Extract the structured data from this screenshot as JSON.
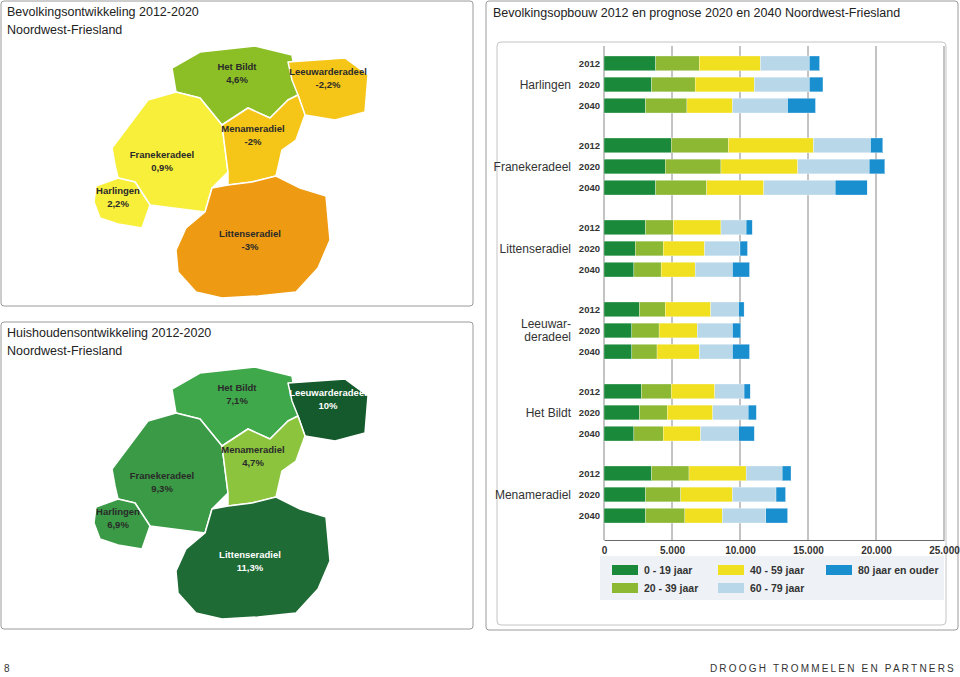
{
  "chart_data": [
    {
      "type": "map",
      "title": "Bevolkingsontwikkeling 2012-2020",
      "subtitle": "Noordwest-Friesland",
      "categories": [
        "Het Bildt",
        "Leeuwarderadeel",
        "Franekeradeel",
        "Menameradiel",
        "Harlingen",
        "Littenseradiel"
      ],
      "values": [
        4.6,
        -2.2,
        0.9,
        -2,
        2.2,
        -3
      ],
      "value_labels": [
        "4,6%",
        "-2,2%",
        "0,9%",
        "-2%",
        "2,2%",
        "-3%"
      ],
      "colors": [
        "#8cbf26",
        "#f5c518",
        "#f8ef3a",
        "#f5c518",
        "#f8ef3a",
        "#ee9a12"
      ],
      "data_labels": true
    },
    {
      "type": "map",
      "title": "Huishoudensontwikkeling 2012-2020",
      "subtitle": "Noordwest-Friesland",
      "categories": [
        "Het Bildt",
        "Leeuwarderadeel",
        "Franekeradeel",
        "Menameradiel",
        "Harlingen",
        "Littenseradiel"
      ],
      "values": [
        7.1,
        10,
        9.3,
        4.7,
        6.9,
        11.3
      ],
      "value_labels": [
        "7,1%",
        "10%",
        "9,3%",
        "4,7%",
        "6,9%",
        "11,3%"
      ],
      "colors": [
        "#3fa84a",
        "#155a2c",
        "#3a9a45",
        "#8cc43e",
        "#3a9a45",
        "#1f6b35"
      ],
      "data_labels": true
    },
    {
      "type": "bar",
      "orientation": "horizontal",
      "stacked": true,
      "grid": true,
      "legend": "bottom",
      "title": "Bevolkingsopbouw 2012 en prognose 2020 en 2040 Noordwest-Friesland",
      "groups": [
        "Harlingen",
        "Franekeradeel",
        "Littenseradiel",
        "Leeuwar-\nderadeel",
        "Het Bildt",
        "Menameradiel"
      ],
      "categories": [
        "2012",
        "2020",
        "2040",
        "2012",
        "2020",
        "2040",
        "2012",
        "2020",
        "2040",
        "2012",
        "2020",
        "2040",
        "2012",
        "2020",
        "2040",
        "2012",
        "2020",
        "2040"
      ],
      "xlim": [
        0,
        25000
      ],
      "xticks": [
        0,
        {
          "value": 5000,
          "label": "5.000"
        },
        {
          "value": 10000,
          "label": "10.000"
        },
        {
          "value": 15000,
          "label": "15.000"
        },
        {
          "value": 20000,
          "label": "20.000"
        },
        {
          "value": 25000,
          "label": "25.000"
        }
      ],
      "series": [
        {
          "name": "0 - 19 jaar",
          "color": "#1a8a3a",
          "values": [
            3800,
            3500,
            3050,
            4950,
            4500,
            3800,
            3050,
            2300,
            2200,
            2600,
            2050,
            2050,
            2750,
            2600,
            2200,
            3500,
            3050,
            3050
          ]
        },
        {
          "name": "20 - 39 jaar",
          "color": "#8db833",
          "values": [
            3200,
            3200,
            3050,
            4200,
            4100,
            3750,
            2050,
            2050,
            2000,
            1900,
            2000,
            1850,
            2200,
            2050,
            2150,
            2750,
            2600,
            2900
          ]
        },
        {
          "name": "40 - 59 jaar",
          "color": "#f0e020",
          "values": [
            4500,
            4350,
            3350,
            6250,
            5650,
            4200,
            3500,
            3050,
            2500,
            3350,
            2800,
            3100,
            3200,
            3350,
            2750,
            4200,
            3800,
            2750
          ]
        },
        {
          "name": "60 - 79 jaar",
          "color": "#b8d8ea",
          "values": [
            3600,
            4050,
            4050,
            4200,
            5250,
            5250,
            1850,
            2600,
            2750,
            2050,
            2600,
            2450,
            2150,
            2600,
            2800,
            2650,
            3200,
            3200
          ]
        },
        {
          "name": "80 jaar en ouder",
          "color": "#1a8fd0",
          "values": [
            750,
            1000,
            2050,
            900,
            1150,
            2350,
            450,
            550,
            1250,
            400,
            600,
            1250,
            450,
            600,
            1150,
            650,
            700,
            1600
          ]
        }
      ]
    }
  ],
  "page_number": 8,
  "footer": "DROOGH TROMMELEN EN PARTNERS"
}
